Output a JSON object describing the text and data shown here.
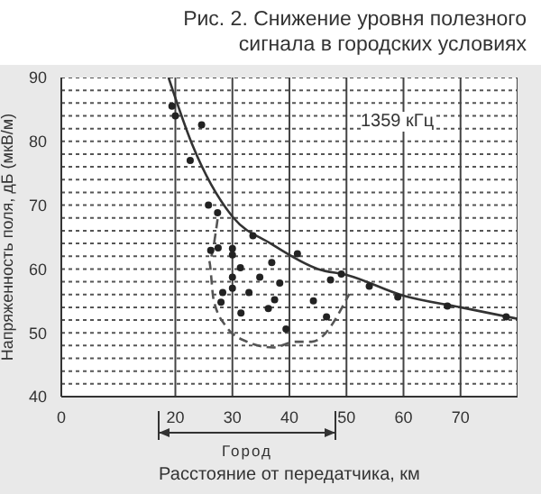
{
  "chart_data": {
    "type": "scatter",
    "title": "Рис. 2. Снижение уровня полезного сигнала в городских условиях",
    "xlabel": "Расстояние от передатчика, км",
    "ylabel": "Напряженность поля, дБ (мкВ/м)",
    "annotations": [
      "1359 кГц",
      "Город"
    ],
    "xlim": [
      0,
      80
    ],
    "xticks": [
      0,
      20,
      30,
      40,
      50,
      60,
      70,
      {
        "value": 80,
        "label": null
      }
    ],
    "ylim": [
      40,
      90
    ],
    "yticks": [
      40,
      {
        "value": 42,
        "label": null
      },
      {
        "value": 44,
        "label": null
      },
      {
        "value": 46,
        "label": null
      },
      {
        "value": 48,
        "label": null
      },
      50,
      {
        "value": 52,
        "label": null
      },
      {
        "value": 54,
        "label": null
      },
      {
        "value": 56,
        "label": null
      },
      {
        "value": 58,
        "label": null
      },
      60,
      {
        "value": 62,
        "label": null
      },
      {
        "value": 64,
        "label": null
      },
      {
        "value": 66,
        "label": null
      },
      {
        "value": 68,
        "label": null
      },
      70,
      {
        "value": 72,
        "label": null
      },
      {
        "value": 74,
        "label": null
      },
      {
        "value": 76,
        "label": null
      },
      {
        "value": 78,
        "label": null
      },
      80,
      {
        "value": 82,
        "label": null
      },
      {
        "value": 84,
        "label": null
      },
      {
        "value": 86,
        "label": null
      },
      {
        "value": 88,
        "label": null
      },
      90
    ],
    "grid": true,
    "series": [
      {
        "color": "#222222",
        "marker": "circle",
        "x": [
          19.4,
          20,
          24.6,
          22.6,
          25.8,
          27.4,
          33.6,
          26.2,
          27.5,
          30,
          30,
          36.9,
          41.4,
          31.4,
          34.8,
          38.3,
          30,
          28.3,
          32.9,
          30,
          28,
          37.4,
          36.3,
          31.5,
          39.4,
          47.2,
          49.1,
          54,
          44.2,
          46.5,
          59,
          67.7,
          78
        ],
        "values": [
          85.5,
          84,
          82.6,
          77,
          70,
          68.8,
          65.2,
          62.9,
          63.3,
          63.2,
          62.2,
          61,
          62.4,
          60.2,
          58.7,
          57.8,
          58.7,
          56.3,
          56.3,
          57,
          54.8,
          55.2,
          53.8,
          53.1,
          50.6,
          58.3,
          59.2,
          57.3,
          55,
          52.5,
          55.6,
          54.2,
          52.5
        ]
      },
      {
        "type": "line",
        "color": "#333333",
        "marker": "none",
        "line_style": "solid",
        "x": [
          18.8,
          23,
          30.2,
          36.7,
          45,
          50.3,
          59.7,
          70,
          80
        ],
        "values": [
          90,
          79.4,
          68,
          64,
          60,
          59,
          55.9,
          54,
          52.2
        ]
      },
      {
        "type": "line",
        "color": "#555555",
        "marker": "none",
        "line_style": "dashed",
        "x": [
          27.4,
          25.9,
          26.7,
          28.9,
          32.6,
          37.2,
          41,
          43.9,
          50.5
        ],
        "values": [
          67.8,
          61.3,
          55.2,
          51,
          48.6,
          47.7,
          48.6,
          48.6,
          56.1
        ]
      }
    ]
  }
}
